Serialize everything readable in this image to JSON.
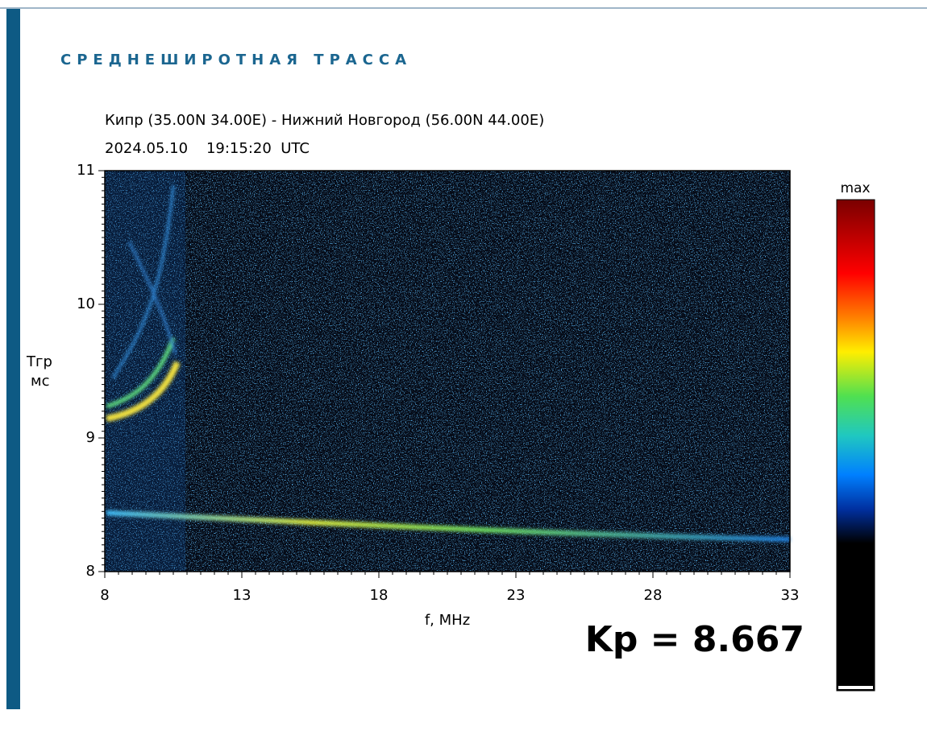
{
  "heading": "СРЕДНЕШИРОТНАЯ ТРАССА",
  "chart_data": {
    "type": "spectrogram",
    "title": "Кипр (35.00N 34.00E) - Нижний Новгород (56.00N 44.00E)",
    "subtitle": "2024.05.10    19:15:20  UTC",
    "xlabel": "f, MHz",
    "ylabel": [
      "Тгр",
      "мс"
    ],
    "xlim": [
      8,
      33
    ],
    "xticks": [
      8,
      13,
      18,
      23,
      28,
      33
    ],
    "ylim": [
      8,
      11
    ],
    "yticks": [
      8,
      9,
      10,
      11
    ],
    "colorbar_label": "max",
    "annotation": "Kp = 8.667"
  }
}
